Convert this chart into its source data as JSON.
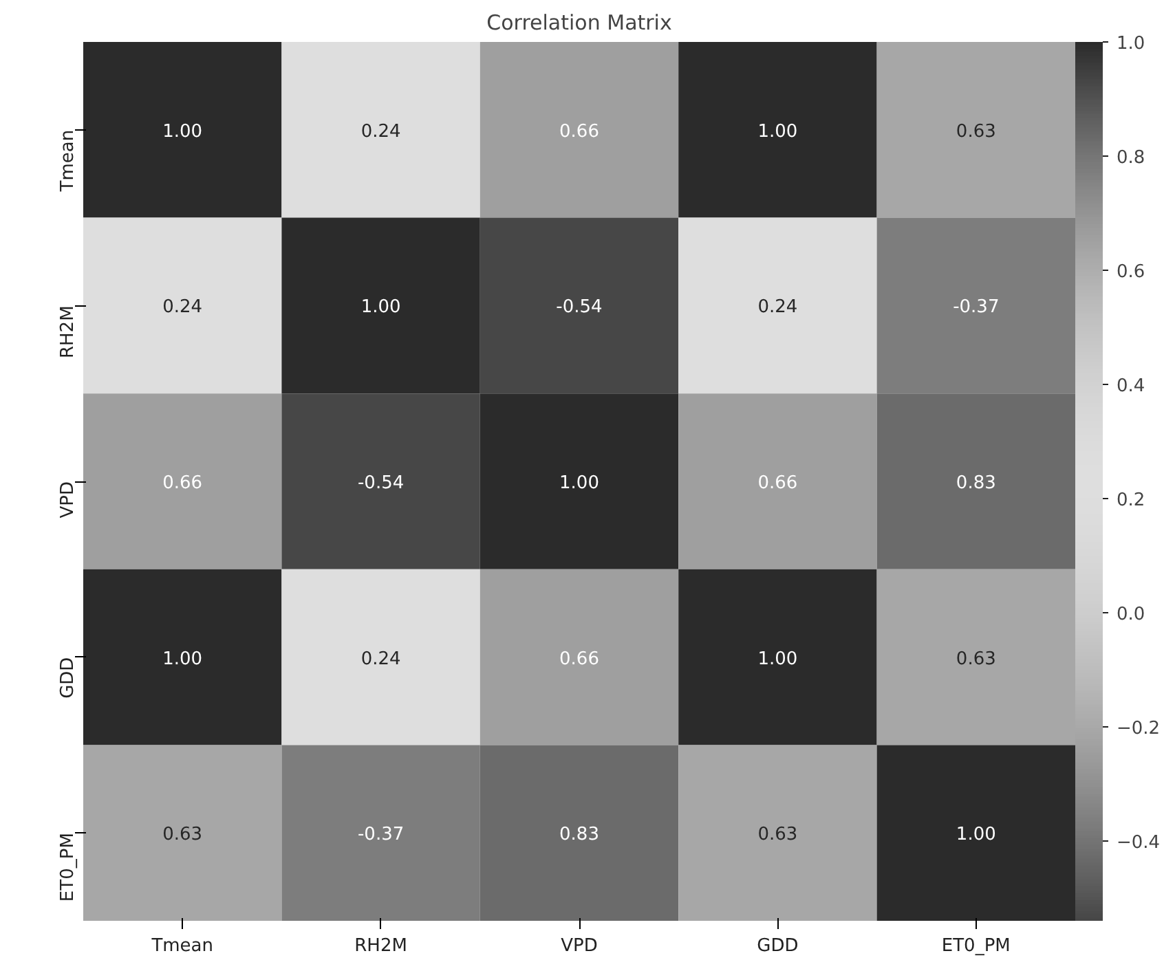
{
  "chart_data": {
    "type": "heatmap",
    "title": "Correlation Matrix",
    "categories": [
      "Tmean",
      "RH2M",
      "VPD",
      "GDD",
      "ET0_PM"
    ],
    "y_categories": [
      "Tmean",
      "RH2M",
      "VPD",
      "GDD",
      "ET0_PM"
    ],
    "cells": [
      [
        1.0,
        0.24,
        0.66,
        1.0,
        0.63
      ],
      [
        0.24,
        1.0,
        -0.54,
        0.24,
        -0.37
      ],
      [
        0.66,
        -0.54,
        1.0,
        0.66,
        0.83
      ],
      [
        1.0,
        0.24,
        0.66,
        1.0,
        0.63
      ],
      [
        0.63,
        -0.37,
        0.83,
        0.63,
        1.0
      ]
    ],
    "cell_labels": [
      [
        "1.00",
        "0.24",
        "0.66",
        "1.00",
        "0.63"
      ],
      [
        "0.24",
        "1.00",
        "-0.54",
        "0.24",
        "-0.37"
      ],
      [
        "0.66",
        "-0.54",
        "1.00",
        "0.66",
        "0.83"
      ],
      [
        "1.00",
        "0.24",
        "0.66",
        "1.00",
        "0.63"
      ],
      [
        "0.63",
        "-0.37",
        "0.83",
        "0.63",
        "1.00"
      ]
    ],
    "clim": [
      -0.54,
      1.0
    ],
    "cticks": [
      -0.4,
      -0.2,
      {
        "value": 0.0,
        "label": "0.0"
      },
      0.2,
      0.4,
      0.6,
      0.8,
      {
        "value": 1.0,
        "label": "1.0"
      }
    ]
  }
}
